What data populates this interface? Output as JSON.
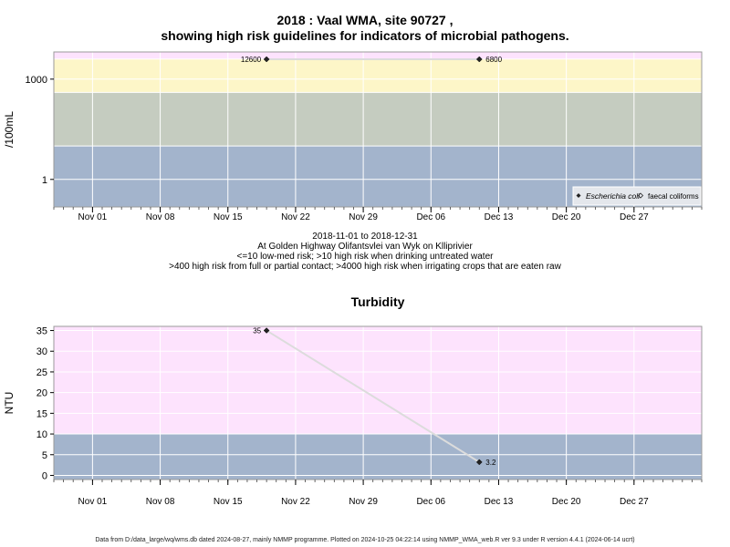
{
  "page": {
    "title_line1": "2018 : Vaal WMA, site 90727 ,",
    "title_line2": "showing high risk guidelines for indicators of microbial pathogens.",
    "subtitle_lines": [
      "2018-11-01 to 2018-12-31",
      "At Golden Highway Olifantsvlei van Wyk on Klliprivier",
      "<=10 low-med risk; >10 high risk when drinking untreated water",
      ">400 high risk from full or partial contact; >4000 high risk when irrigating crops that are eaten raw"
    ],
    "footer": "Data from D:/data_large/wq/wms.db dated 2024-08-27, mainly NMMP programme. Plotted on 2024-10-25 04:22:14 using NMMP_WMA_web.R ver 9.3 under R version 4.4.1 (2024-06-14 ucrt)"
  },
  "chart_data": [
    {
      "type": "line",
      "title": "",
      "ylabel": "/100mL",
      "xlabel": "",
      "y_scale": "log10",
      "ylim": [
        0.15,
        6500
      ],
      "xlim": [
        "2018-10-28",
        "2019-01-03"
      ],
      "grid": true,
      "y_ticks": [
        {
          "value": 1,
          "label": "1"
        },
        {
          "value": 1000,
          "label": "1000"
        }
      ],
      "x_ticks": [
        {
          "date": "2018-11-01",
          "label": "Nov 01"
        },
        {
          "date": "2018-11-08",
          "label": "Nov 08"
        },
        {
          "date": "2018-11-15",
          "label": "Nov 15"
        },
        {
          "date": "2018-11-22",
          "label": "Nov 22"
        },
        {
          "date": "2018-11-29",
          "label": "Nov 29"
        },
        {
          "date": "2018-12-06",
          "label": "Dec 06"
        },
        {
          "date": "2018-12-13",
          "label": "Dec 13"
        },
        {
          "date": "2018-12-20",
          "label": "Dec 20"
        },
        {
          "date": "2018-12-27",
          "label": "Dec 27"
        }
      ],
      "bands": [
        {
          "from": 0.15,
          "to": 10,
          "color": "#a3b4cc"
        },
        {
          "from": 10,
          "to": 400,
          "color": "#c5ccc0"
        },
        {
          "from": 400,
          "to": 4000,
          "color": "#fdf6c8"
        },
        {
          "from": 4000,
          "to": 6500,
          "color": "#fde3fd"
        }
      ],
      "series": [
        {
          "name": "Escherichia coli",
          "marker": "filled-diamond",
          "x": [
            "2018-11-19",
            "2018-12-11"
          ],
          "y": [
            12600,
            6800
          ],
          "labels": [
            "12600",
            "6800"
          ]
        }
      ],
      "legend": {
        "position": "bottom-right",
        "entries": [
          {
            "label": "Escherichia coli",
            "marker": "filled-diamond",
            "italic": true
          },
          {
            "label": "faecal coliforms",
            "marker": "open-diamond",
            "italic": false
          }
        ]
      }
    },
    {
      "type": "line",
      "title": "Turbidity",
      "ylabel": "NTU",
      "xlabel": "",
      "ylim": [
        -1,
        36
      ],
      "xlim": [
        "2018-10-28",
        "2019-01-03"
      ],
      "grid": true,
      "y_ticks": [
        0,
        5,
        10,
        15,
        20,
        25,
        30,
        35
      ],
      "x_ticks": [
        {
          "date": "2018-11-01",
          "label": "Nov 01"
        },
        {
          "date": "2018-11-08",
          "label": "Nov 08"
        },
        {
          "date": "2018-11-15",
          "label": "Nov 15"
        },
        {
          "date": "2018-11-22",
          "label": "Nov 22"
        },
        {
          "date": "2018-11-29",
          "label": "Nov 29"
        },
        {
          "date": "2018-12-06",
          "label": "Dec 06"
        },
        {
          "date": "2018-12-13",
          "label": "Dec 13"
        },
        {
          "date": "2018-12-20",
          "label": "Dec 20"
        },
        {
          "date": "2018-12-27",
          "label": "Dec 27"
        }
      ],
      "bands": [
        {
          "from": -1,
          "to": 10,
          "color": "#a3b4cc"
        },
        {
          "from": 10,
          "to": 36,
          "color": "#fde3fd"
        }
      ],
      "series": [
        {
          "name": "",
          "marker": "filled-diamond",
          "x": [
            "2018-11-19",
            "2018-12-11"
          ],
          "y": [
            35,
            3.2
          ],
          "labels": [
            "35",
            "3.2"
          ]
        }
      ]
    }
  ]
}
